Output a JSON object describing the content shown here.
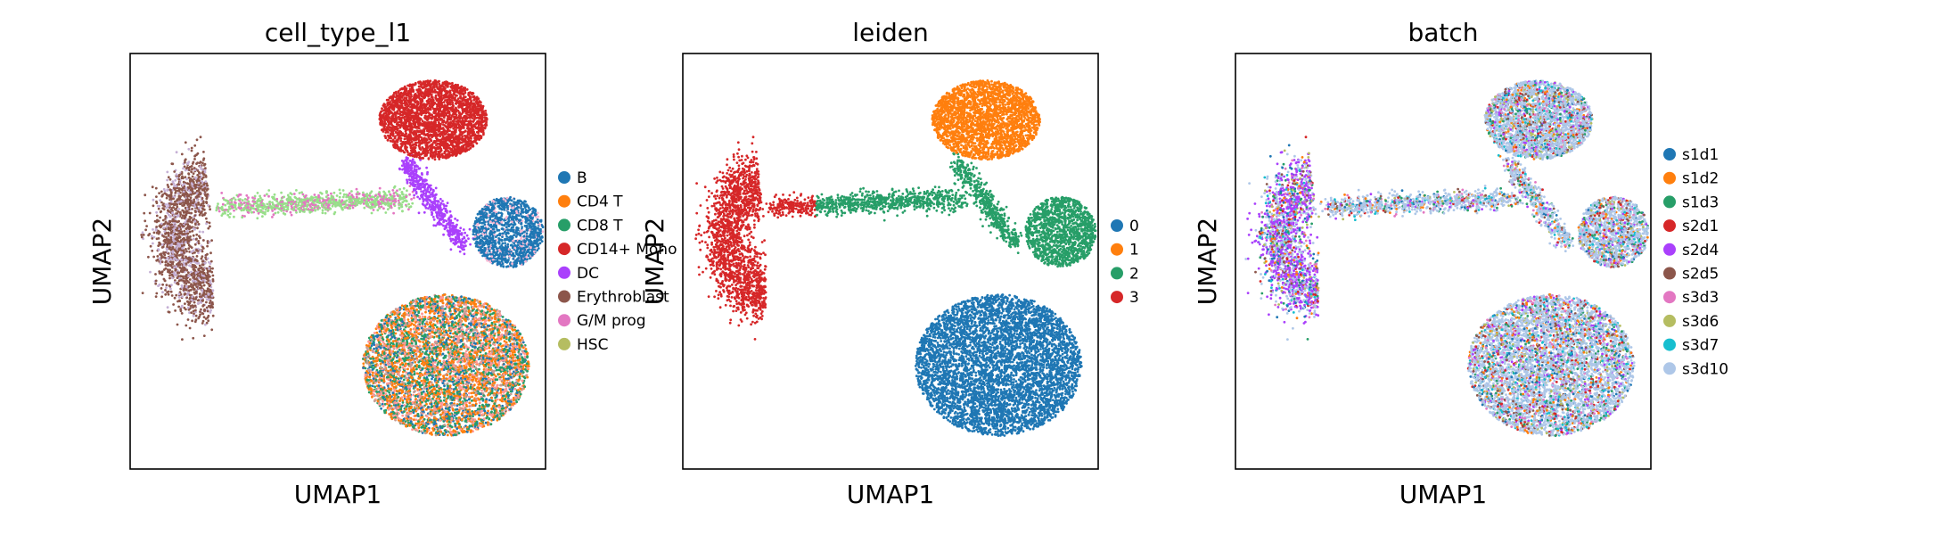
{
  "chart_data": [
    {
      "type": "scatter",
      "title": "cell_type_l1",
      "xlabel": "UMAP1",
      "ylabel": "UMAP2",
      "ticks": "none",
      "legend_placement": "right",
      "legend": [
        {
          "name": "B",
          "color": "#1f77b4"
        },
        {
          "name": "CD4 T",
          "color": "#ff7f0e"
        },
        {
          "name": "CD8 T",
          "color": "#279e68"
        },
        {
          "name": "CD14+ Mono",
          "color": "#d62728"
        },
        {
          "name": "DC",
          "color": "#aa40fc"
        },
        {
          "name": "Erythroblast",
          "color": "#8c564b"
        },
        {
          "name": "G/M prog",
          "color": "#e377c2"
        },
        {
          "name": "HSC",
          "color": "#b5bd61"
        }
      ]
    },
    {
      "type": "scatter",
      "title": "leiden",
      "xlabel": "UMAP1",
      "ylabel": "UMAP2",
      "ticks": "none",
      "legend_placement": "right",
      "legend": [
        {
          "name": "0",
          "color": "#1f77b4"
        },
        {
          "name": "1",
          "color": "#ff7f0e"
        },
        {
          "name": "2",
          "color": "#279e68"
        },
        {
          "name": "3",
          "color": "#d62728"
        }
      ]
    },
    {
      "type": "scatter",
      "title": "batch",
      "xlabel": "UMAP1",
      "ylabel": "UMAP2",
      "ticks": "none",
      "legend_placement": "right",
      "legend": [
        {
          "name": "s1d1",
          "color": "#1f77b4"
        },
        {
          "name": "s1d2",
          "color": "#ff7f0e"
        },
        {
          "name": "s1d3",
          "color": "#279e68"
        },
        {
          "name": "s2d1",
          "color": "#d62728"
        },
        {
          "name": "s2d4",
          "color": "#aa40fc"
        },
        {
          "name": "s2d5",
          "color": "#8c564b"
        },
        {
          "name": "s3d3",
          "color": "#e377c2"
        },
        {
          "name": "s3d6",
          "color": "#b5bd61"
        },
        {
          "name": "s3d7",
          "color": "#17becf"
        },
        {
          "name": "s3d10",
          "color": "#aec7e8"
        }
      ]
    }
  ]
}
